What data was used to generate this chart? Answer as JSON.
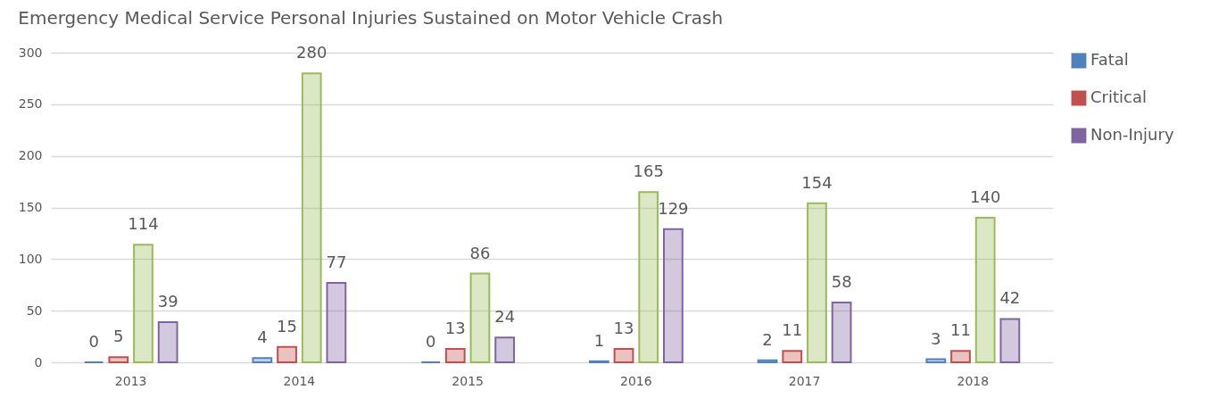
{
  "chart_data": {
    "type": "bar",
    "title": "Emergency Medical Service Personal Injuries Sustained on Motor Vehicle Crash",
    "categories": [
      "2013",
      "2014",
      "2015",
      "2016",
      "2017",
      "2018"
    ],
    "series": [
      {
        "name": "Fatal",
        "color": "#4f81bd",
        "values": [
          0,
          4,
          0,
          1,
          2,
          3
        ]
      },
      {
        "name": "Critical",
        "color": "#c0504d",
        "values": [
          5,
          15,
          13,
          13,
          11,
          11
        ]
      },
      {
        "color": "#9bbb59",
        "values": [
          114,
          280,
          86,
          165,
          154,
          140
        ]
      },
      {
        "name": "Non-Injury",
        "color": "#8064a2",
        "values": [
          39,
          77,
          24,
          129,
          58,
          42
        ]
      }
    ],
    "ylim": [
      0,
      300
    ],
    "yticks": [
      0,
      50,
      100,
      150,
      200,
      250,
      300
    ],
    "grid": "y",
    "legend": "right",
    "data_labels": true
  }
}
